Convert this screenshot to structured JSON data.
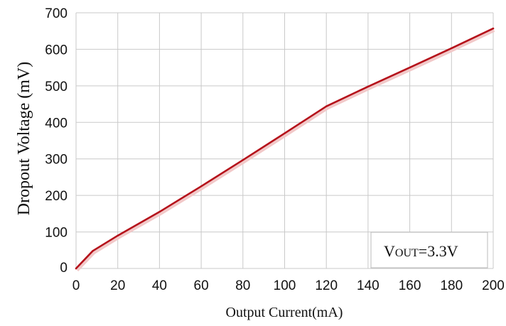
{
  "chart_data": {
    "type": "line",
    "xlabel": "Output Current(mA)",
    "ylabel": "Dropout Voltage (mV)",
    "xlim": [
      0,
      200
    ],
    "ylim": [
      0,
      700
    ],
    "x_ticks": [
      "0",
      "20",
      "40",
      "60",
      "80",
      "100",
      "120",
      "140",
      "160",
      "180",
      "200"
    ],
    "y_ticks": [
      "0",
      "100",
      "200",
      "300",
      "400",
      "500",
      "600",
      "700"
    ],
    "grid": true,
    "annotation": {
      "main": "V",
      "sub": "OUT",
      "rest": "=3.3V"
    },
    "series": [
      {
        "color": "#b5121b",
        "x": [
          0,
          8,
          20,
          40,
          60,
          80,
          100,
          120,
          140,
          160,
          180,
          200
        ],
        "y": [
          0,
          48,
          90,
          155,
          225,
          297,
          370,
          444,
          498,
          550,
          603,
          657
        ]
      }
    ]
  }
}
